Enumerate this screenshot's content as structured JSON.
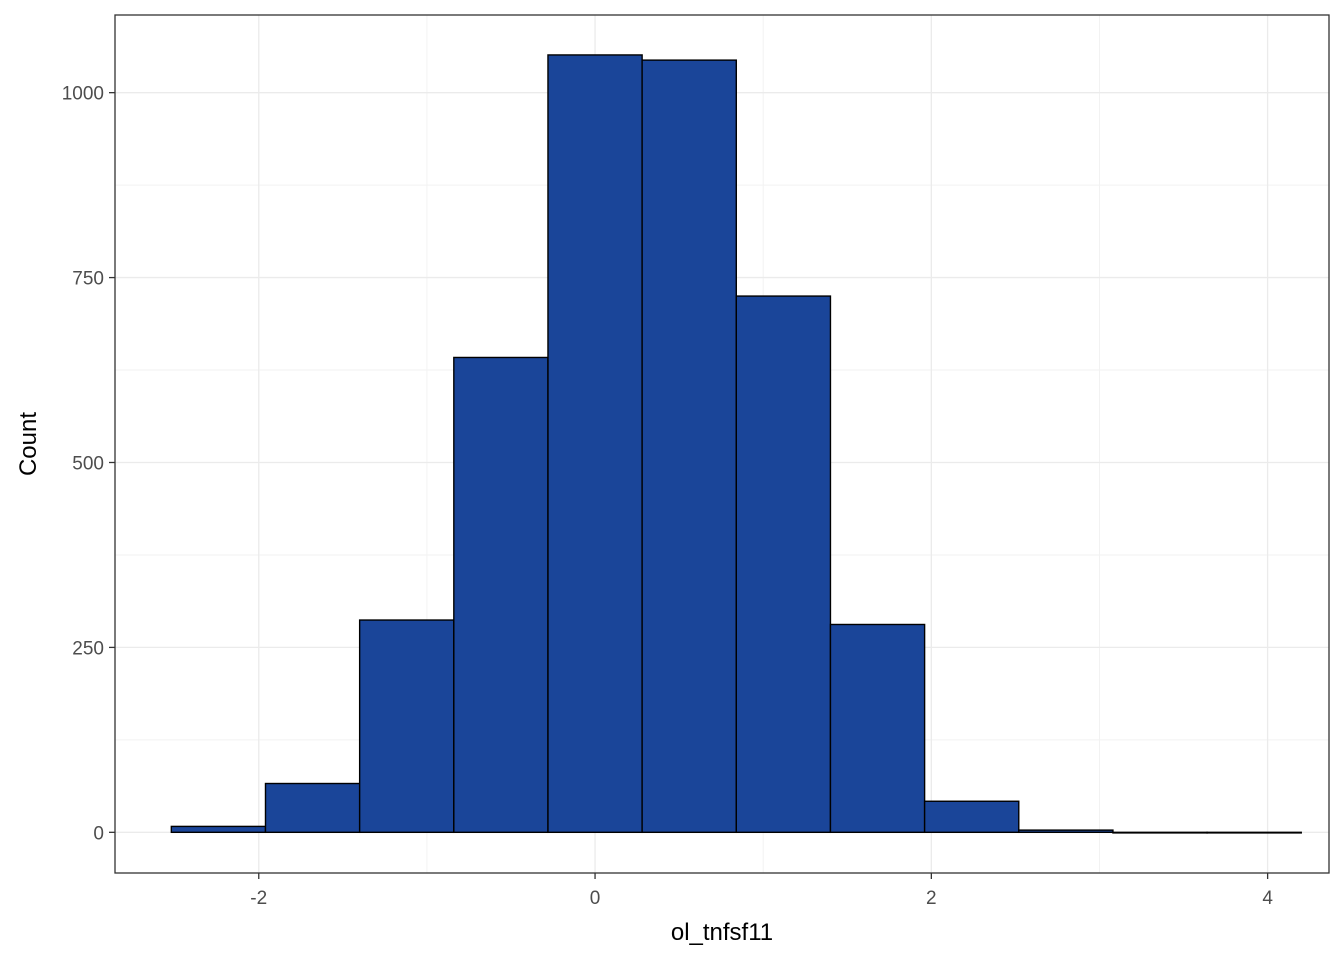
{
  "chart_data": {
    "type": "bar",
    "subtype": "histogram",
    "title": "",
    "xlabel": "ol_tnfsf11",
    "ylabel": "Count",
    "bins": [
      {
        "x0": -2.52,
        "x1": -1.96,
        "count": 8
      },
      {
        "x0": -1.96,
        "x1": -1.4,
        "count": 66
      },
      {
        "x0": -1.4,
        "x1": -0.84,
        "count": 287
      },
      {
        "x0": -0.84,
        "x1": -0.28,
        "count": 642
      },
      {
        "x0": -0.28,
        "x1": 0.28,
        "count": 1051
      },
      {
        "x0": 0.28,
        "x1": 0.84,
        "count": 1044
      },
      {
        "x0": 0.84,
        "x1": 1.4,
        "count": 725
      },
      {
        "x0": 1.4,
        "x1": 1.96,
        "count": 281
      },
      {
        "x0": 1.96,
        "x1": 2.52,
        "count": 42
      },
      {
        "x0": 2.52,
        "x1": 3.08,
        "count": 3
      },
      {
        "x0": 3.08,
        "x1": 3.64,
        "count": 0
      },
      {
        "x0": 3.64,
        "x1": 4.2,
        "count": 0
      }
    ],
    "xlim": [
      -2.855,
      4.365
    ],
    "ylim": [
      -55,
      1105
    ],
    "xticks": [
      -2,
      0,
      2,
      4
    ],
    "xtick_labels": [
      "-2",
      "0",
      "2",
      "4"
    ],
    "yticks": [
      0,
      250,
      500,
      750,
      1000
    ],
    "ytick_labels": [
      "0",
      "250",
      "500",
      "750",
      "1000"
    ],
    "grid": true,
    "legend": "none",
    "colors": {
      "bar_fill": "#1a4599",
      "bar_stroke": "#000000",
      "grid_major": "#ebebeb",
      "grid_minor": "#f2f2f2",
      "panel_border": "#333333",
      "tick_text": "#4d4d4d"
    }
  }
}
